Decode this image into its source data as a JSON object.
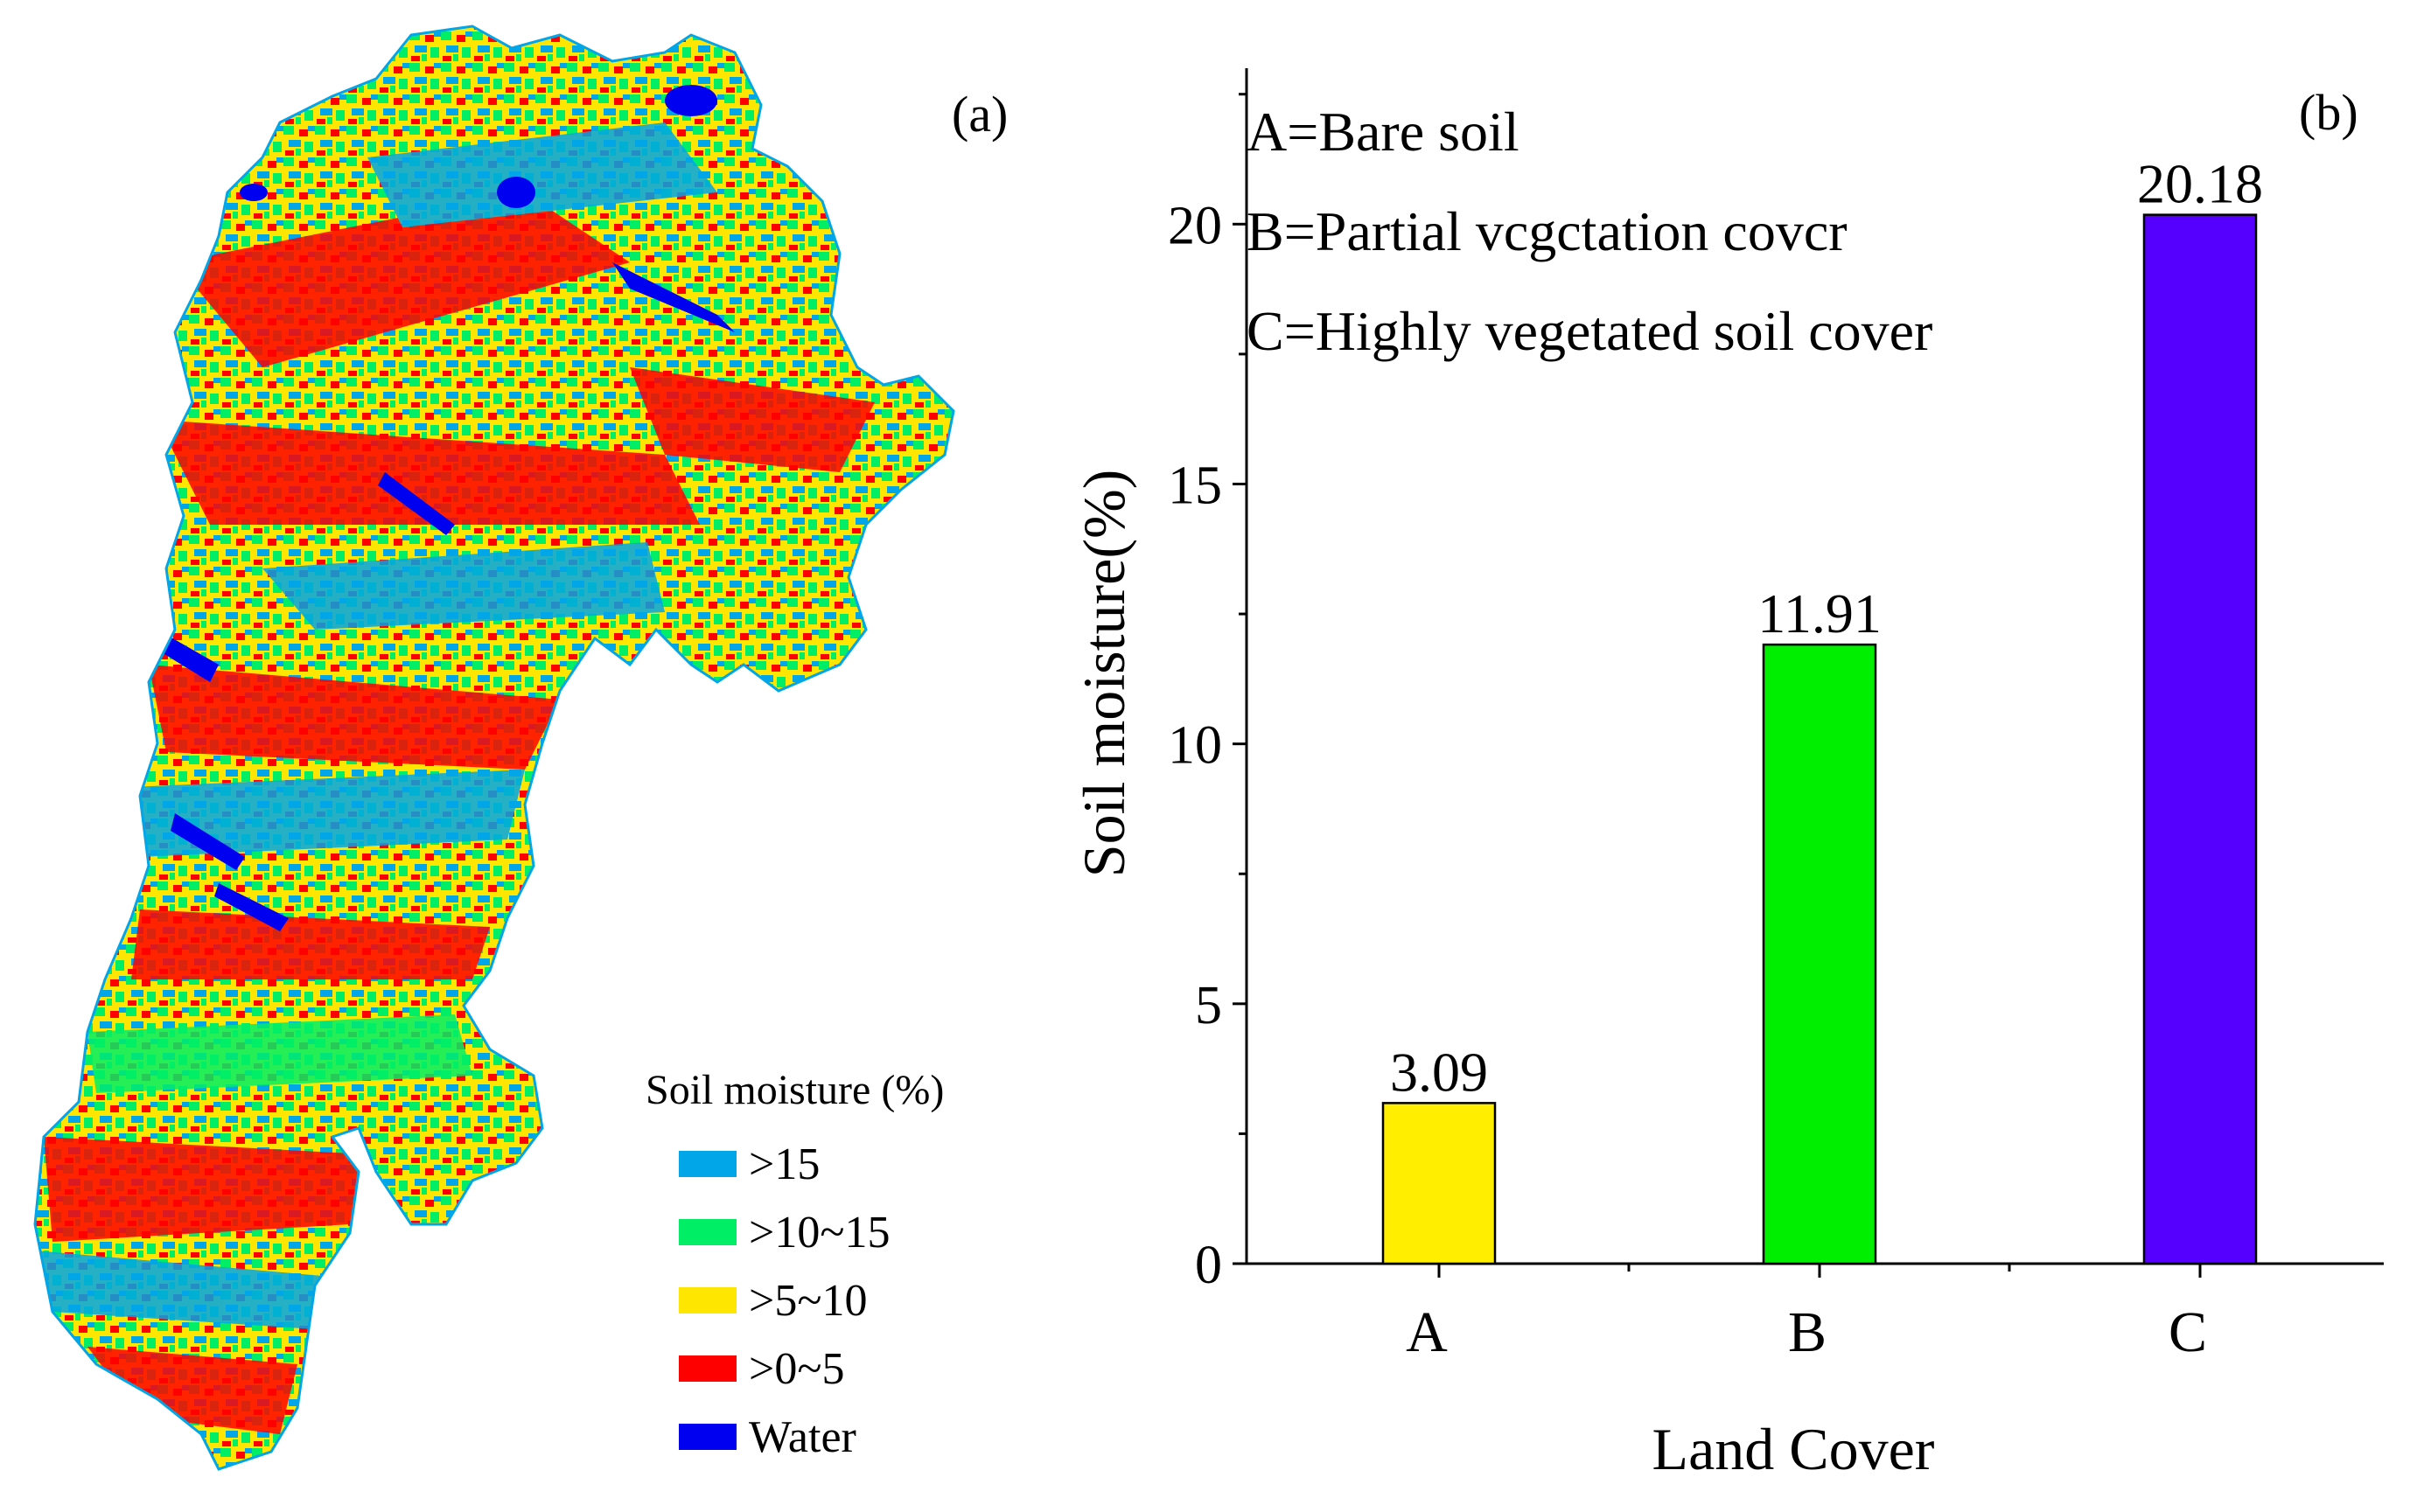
{
  "colors": {
    "water": "#0000f0",
    "gt15": "#00a6e8",
    "gt10_15": "#00ee66",
    "gt5_10": "#ffe600",
    "gt0_5": "#ff0000",
    "bar_a": "#ffee00",
    "bar_b": "#00ee00",
    "bar_c": "#5500ff"
  },
  "panel_a": {
    "label": "(a)",
    "legend": {
      "title": "Soil moisture (%)",
      "items": [
        {
          "label": ">15",
          "color": "#00a6e8"
        },
        {
          "label": ">10~15",
          "color": "#00ee66"
        },
        {
          "label": ">5~10",
          "color": "#ffe600"
        },
        {
          "label": ">0~5",
          "color": "#ff0000"
        },
        {
          "label": "Water",
          "color": "#0000f0"
        }
      ]
    }
  },
  "chart_data": {
    "type": "bar",
    "panel_label": "(b)",
    "categories": [
      "A",
      "B",
      "C"
    ],
    "values": [
      3.09,
      11.91,
      20.18
    ],
    "value_labels": [
      "3.09",
      "11.91",
      "20.18"
    ],
    "bar_colors": [
      "#ffee00",
      "#00ee00",
      "#5500ff"
    ],
    "xlabel": "Land Cover",
    "ylabel": "Soil moisture(%)",
    "ylim": [
      0,
      23
    ],
    "yticks": [
      0,
      5,
      10,
      15,
      20
    ],
    "annotations": [
      "A=Bare soil",
      "B=Partial vcgctation covcr",
      "C=Highly vegetated soil cover"
    ],
    "grid": false
  }
}
